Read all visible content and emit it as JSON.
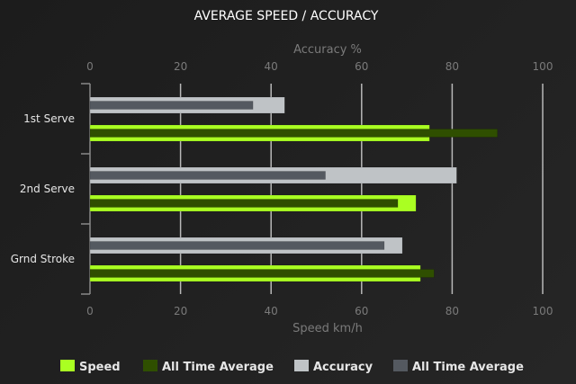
{
  "chart_data": {
    "type": "bar",
    "orientation": "horizontal",
    "title": "AVERAGE SPEED / ACCURACY",
    "categories": [
      "1st Serve",
      "2nd Serve",
      "Grnd Stroke"
    ],
    "top_axis": {
      "label": "Accuracy %",
      "range": [
        0,
        100
      ],
      "ticks": [
        0,
        20,
        40,
        60,
        80,
        100
      ]
    },
    "bottom_axis": {
      "label": "Speed km/h",
      "range": [
        0,
        100
      ],
      "ticks": [
        0,
        20,
        40,
        60,
        80,
        100
      ]
    },
    "grid": true,
    "legend_placement": "bottom",
    "series": [
      {
        "name": "Speed",
        "axis": "bottom",
        "color": "#aaff22",
        "values": [
          75,
          72,
          73
        ]
      },
      {
        "name": "All Time Average",
        "axis": "bottom",
        "color": "#2f4f00",
        "values": [
          90,
          68,
          76
        ]
      },
      {
        "name": "Accuracy",
        "axis": "top",
        "color": "#bfc3c6",
        "values": [
          43,
          81,
          69
        ]
      },
      {
        "name": "All Time Average",
        "axis": "top",
        "color": "#545960",
        "values": [
          36,
          52,
          65
        ]
      }
    ]
  }
}
